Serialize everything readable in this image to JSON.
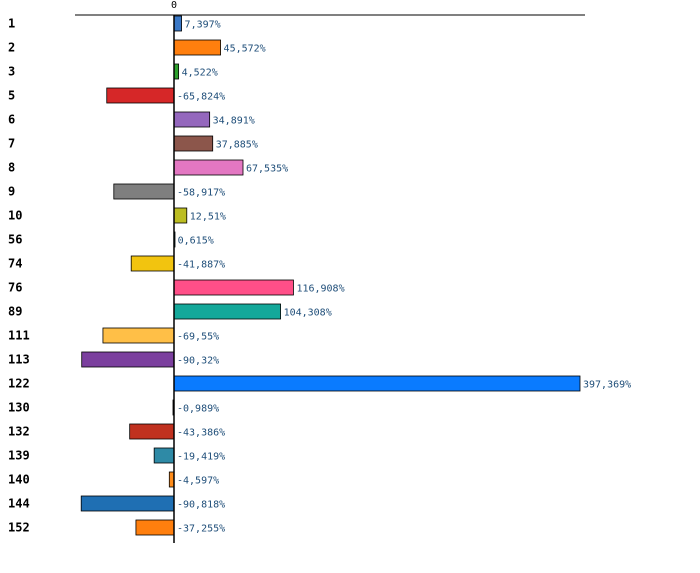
{
  "chart_data": {
    "type": "bar",
    "orientation": "horizontal",
    "title": "",
    "xlabel": "",
    "ylabel": "",
    "zero_tick_label": "0",
    "xlim": [
      -100,
      400
    ],
    "categories": [
      "1",
      "2",
      "3",
      "5",
      "6",
      "7",
      "8",
      "9",
      "10",
      "56",
      "74",
      "76",
      "89",
      "111",
      "113",
      "122",
      "130",
      "132",
      "139",
      "140",
      "144",
      "152"
    ],
    "values": [
      7.397,
      45.572,
      4.522,
      -65.824,
      34.891,
      37.885,
      67.535,
      -58.917,
      12.51,
      0.615,
      -41.887,
      116.908,
      104.308,
      -69.55,
      -90.32,
      397.369,
      -0.989,
      -43.386,
      -19.419,
      -4.597,
      -90.818,
      -37.255
    ],
    "value_labels": [
      "7,397%",
      "45,572%",
      "4,522%",
      "-65,824%",
      "34,891%",
      "37,885%",
      "67,535%",
      "-58,917%",
      "12,51%",
      "0,615%",
      "-41,887%",
      "116,908%",
      "104,308%",
      "-69,55%",
      "-90,32%",
      "397,369%",
      "-0,989%",
      "-43,386%",
      "-19,419%",
      "-4,597%",
      "-90,818%",
      "-37,255%"
    ],
    "colors": [
      "#3a78c6",
      "#ff7f0e",
      "#2ca02c",
      "#d62728",
      "#9467bd",
      "#8c564b",
      "#e377c2",
      "#7f7f7f",
      "#bcbd22",
      "#17becf",
      "#f2c40f",
      "#ff4f88",
      "#14a89a",
      "#ffbf47",
      "#7b3f9e",
      "#0a7bff",
      "#111111",
      "#c0311f",
      "#2e8aa6",
      "#ff8c1a",
      "#1f6fb3",
      "#ff7f0e"
    ]
  }
}
